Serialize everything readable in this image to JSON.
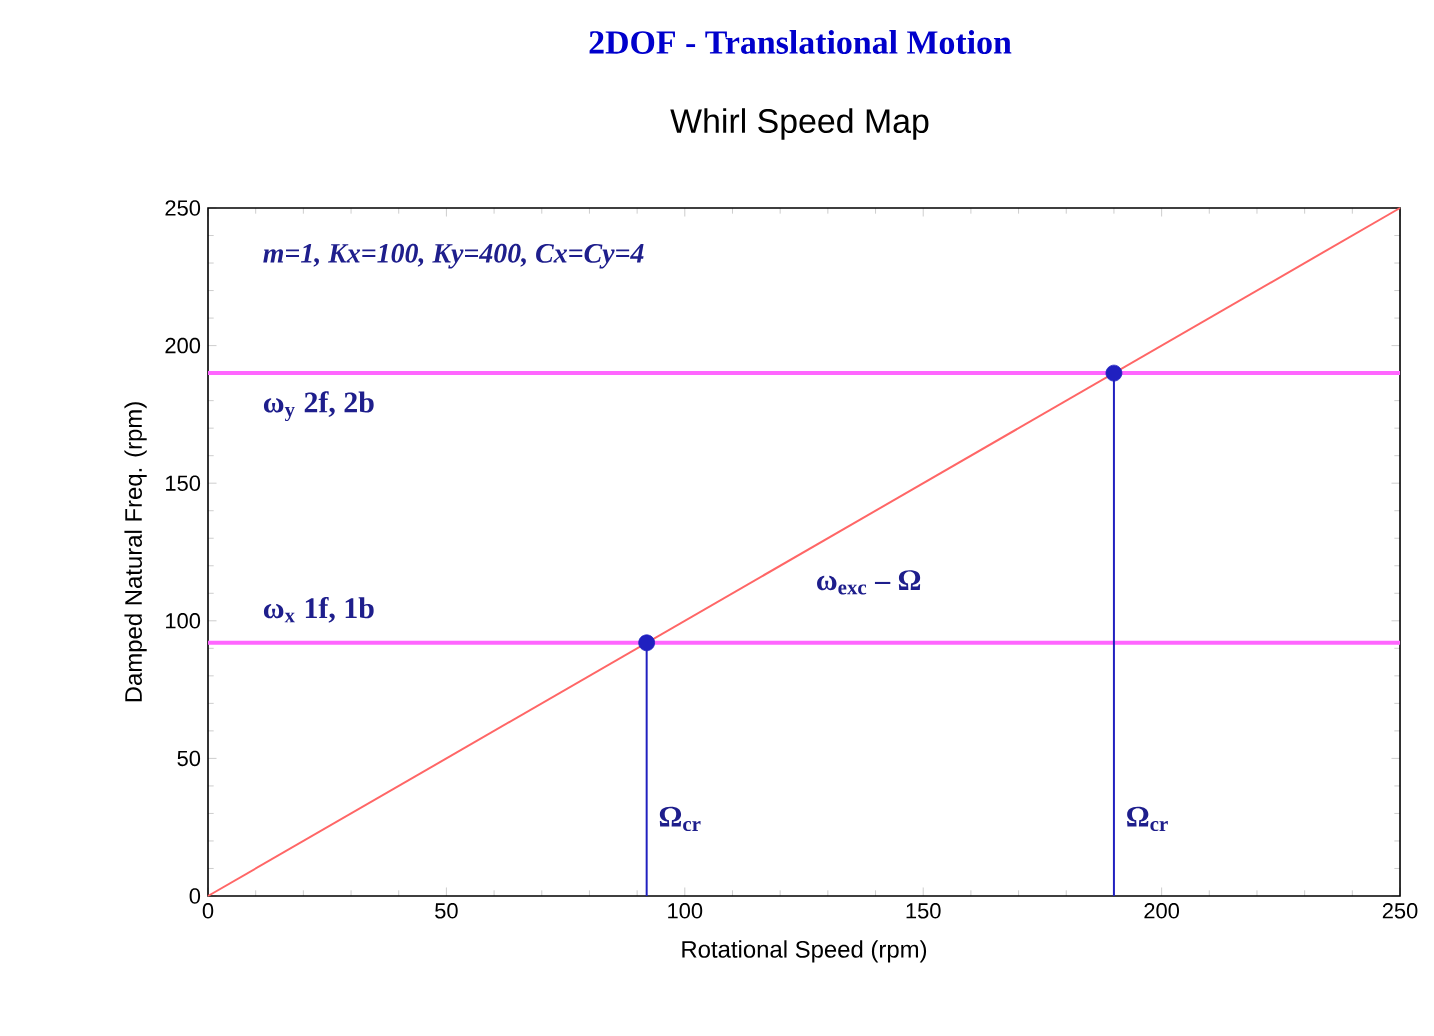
{
  "chart_data": {
    "type": "line",
    "title": "2DOF - Translational Motion",
    "subtitle": "Whirl Speed Map",
    "xlabel": "Rotational Speed (rpm)",
    "ylabel": "Damped Natural Freq. (rpm)",
    "xlim": [
      0,
      250
    ],
    "ylim": [
      0,
      250
    ],
    "xticks": [
      0,
      50,
      100,
      150,
      200,
      250
    ],
    "yticks": [
      0,
      50,
      100,
      150,
      200,
      250
    ],
    "series": [
      {
        "color": "#ff6666",
        "x": [
          0,
          250
        ],
        "values": [
          0,
          250
        ]
      },
      {
        "type": "lollipop",
        "color": "#2020c0",
        "x": [
          92,
          190
        ],
        "values": [
          92,
          190
        ]
      }
    ],
    "ref_lines": [
      {
        "axis": "y",
        "value": 92,
        "color": "#ff66ff"
      },
      {
        "axis": "y",
        "value": 190,
        "color": "#ff66ff"
      }
    ],
    "annotations": [
      "m=1, Kx=100, Ky=400, Cx=Cy=4",
      "ω$_{y}$    2f, 2b",
      "ω$_{x}$    1f, 1b",
      "ω$_{exc}$ – Ω",
      "Ω$_{cr}$",
      "Ω$_{cr}$"
    ]
  }
}
